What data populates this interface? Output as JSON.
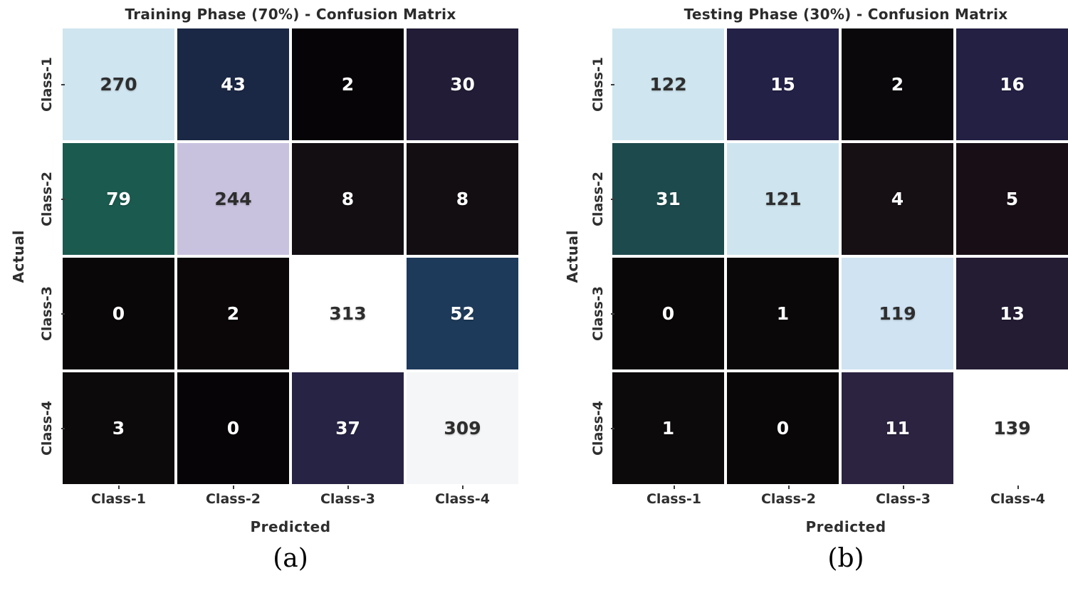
{
  "figure": {
    "panels": [
      {
        "title": "Training Phase (70%) - Confusion Matrix",
        "ylabel": "Actual",
        "xlabel": "Predicted",
        "caption": "(a)",
        "row_labels": [
          "Class-1",
          "Class-2",
          "Class-3",
          "Class-4"
        ],
        "col_labels": [
          "Class-1",
          "Class-2",
          "Class-3",
          "Class-4"
        ],
        "cells": [
          [
            {
              "v": "270",
              "bg": "#cfe5f0",
              "fg": "#2e2e2e"
            },
            {
              "v": "43",
              "bg": "#1b2845",
              "fg": "#ffffff"
            },
            {
              "v": "2",
              "bg": "#060407",
              "fg": "#ffffff"
            },
            {
              "v": "30",
              "bg": "#221c37",
              "fg": "#ffffff"
            }
          ],
          [
            {
              "v": "79",
              "bg": "#1b5a4f",
              "fg": "#ffffff"
            },
            {
              "v": "244",
              "bg": "#c9c2df",
              "fg": "#2e2e2e"
            },
            {
              "v": "8",
              "bg": "#130e12",
              "fg": "#ffffff"
            },
            {
              "v": "8",
              "bg": "#130e12",
              "fg": "#ffffff"
            }
          ],
          [
            {
              "v": "0",
              "bg": "#0a0709",
              "fg": "#ffffff"
            },
            {
              "v": "2",
              "bg": "#0b0709",
              "fg": "#ffffff"
            },
            {
              "v": "313",
              "bg": "#ffffff",
              "fg": "#2e2e2e"
            },
            {
              "v": "52",
              "bg": "#1d3a5a",
              "fg": "#ffffff"
            }
          ],
          [
            {
              "v": "3",
              "bg": "#0d0a0c",
              "fg": "#ffffff"
            },
            {
              "v": "0",
              "bg": "#060407",
              "fg": "#ffffff"
            },
            {
              "v": "37",
              "bg": "#272345",
              "fg": "#ffffff"
            },
            {
              "v": "309",
              "bg": "#f5f6f7",
              "fg": "#2e2e2e"
            }
          ]
        ]
      },
      {
        "title": "Testing Phase (30%) - Confusion Matrix",
        "ylabel": "Actual",
        "xlabel": "Predicted",
        "caption": "(b)",
        "row_labels": [
          "Class-1",
          "Class-2",
          "Class-3",
          "Class-4"
        ],
        "col_labels": [
          "Class-1",
          "Class-2",
          "Class-3",
          "Class-4"
        ],
        "cells": [
          [
            {
              "v": "122",
              "bg": "#cfe6f0",
              "fg": "#2e2e2e"
            },
            {
              "v": "15",
              "bg": "#242147",
              "fg": "#ffffff"
            },
            {
              "v": "2",
              "bg": "#0b080b",
              "fg": "#ffffff"
            },
            {
              "v": "16",
              "bg": "#232044",
              "fg": "#ffffff"
            }
          ],
          [
            {
              "v": "31",
              "bg": "#1d4a4d",
              "fg": "#ffffff"
            },
            {
              "v": "121",
              "bg": "#cee5ef",
              "fg": "#2e2e2e"
            },
            {
              "v": "4",
              "bg": "#160f14",
              "fg": "#ffffff"
            },
            {
              "v": "5",
              "bg": "#170f15",
              "fg": "#ffffff"
            }
          ],
          [
            {
              "v": "0",
              "bg": "#0a0709",
              "fg": "#ffffff"
            },
            {
              "v": "1",
              "bg": "#0b0809",
              "fg": "#ffffff"
            },
            {
              "v": "119",
              "bg": "#cfe3f2",
              "fg": "#2e2e2e"
            },
            {
              "v": "13",
              "bg": "#231c33",
              "fg": "#ffffff"
            }
          ],
          [
            {
              "v": "1",
              "bg": "#0d0a0c",
              "fg": "#ffffff"
            },
            {
              "v": "0",
              "bg": "#0a0709",
              "fg": "#ffffff"
            },
            {
              "v": "11",
              "bg": "#2b2340",
              "fg": "#ffffff"
            },
            {
              "v": "139",
              "bg": "#ffffff",
              "fg": "#2e2e2e"
            }
          ]
        ]
      }
    ]
  },
  "chart_data": [
    {
      "type": "heatmap",
      "title": "Training Phase (70%) - Confusion Matrix",
      "xlabel": "Predicted",
      "ylabel": "Actual",
      "x_categories": [
        "Class-1",
        "Class-2",
        "Class-3",
        "Class-4"
      ],
      "y_categories": [
        "Class-1",
        "Class-2",
        "Class-3",
        "Class-4"
      ],
      "values": [
        [
          270,
          43,
          2,
          30
        ],
        [
          79,
          244,
          8,
          8
        ],
        [
          0,
          2,
          313,
          52
        ],
        [
          3,
          0,
          37,
          309
        ]
      ],
      "caption": "(a)",
      "legend": "none",
      "annotations": "cell values shown in each square"
    },
    {
      "type": "heatmap",
      "title": "Testing Phase (30%) - Confusion Matrix",
      "xlabel": "Predicted",
      "ylabel": "Actual",
      "x_categories": [
        "Class-1",
        "Class-2",
        "Class-3",
        "Class-4"
      ],
      "y_categories": [
        "Class-1",
        "Class-2",
        "Class-3",
        "Class-4"
      ],
      "values": [
        [
          122,
          15,
          2,
          16
        ],
        [
          31,
          121,
          4,
          5
        ],
        [
          0,
          1,
          119,
          13
        ],
        [
          1,
          0,
          11,
          139
        ]
      ],
      "caption": "(b)",
      "legend": "none",
      "annotations": "cell values shown in each square"
    }
  ]
}
